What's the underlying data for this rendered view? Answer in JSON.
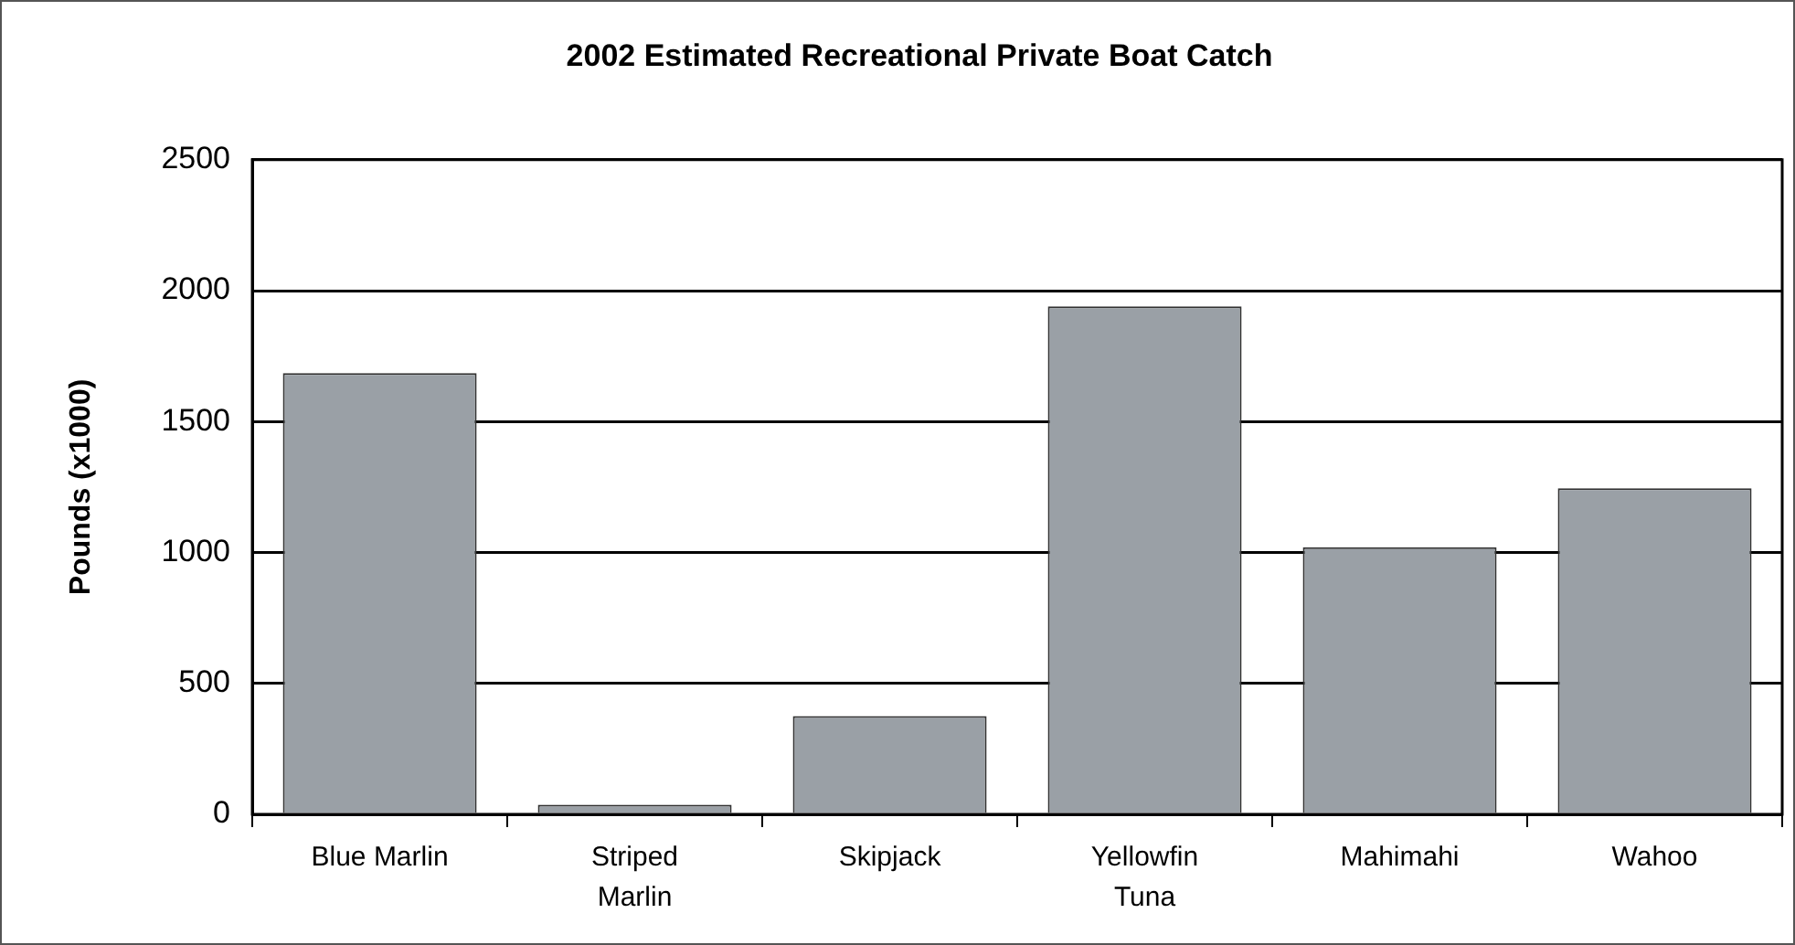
{
  "chart_data": {
    "type": "bar",
    "title": "2002 Estimated Recreational Private Boat Catch",
    "ylabel": "Pounds (x1000)",
    "categories": [
      "Blue Marlin",
      "Striped Marlin",
      "Skipjack",
      "Yellowfin Tuna",
      "Mahimahi",
      "Wahoo"
    ],
    "values": [
      1685,
      37,
      375,
      1940,
      1020,
      1245
    ],
    "color": "#9aa0a6",
    "ylim": [
      0,
      2500
    ],
    "yticks": [
      0,
      500,
      1000,
      1500,
      2000,
      2500
    ],
    "grid": "y",
    "legend": false
  }
}
